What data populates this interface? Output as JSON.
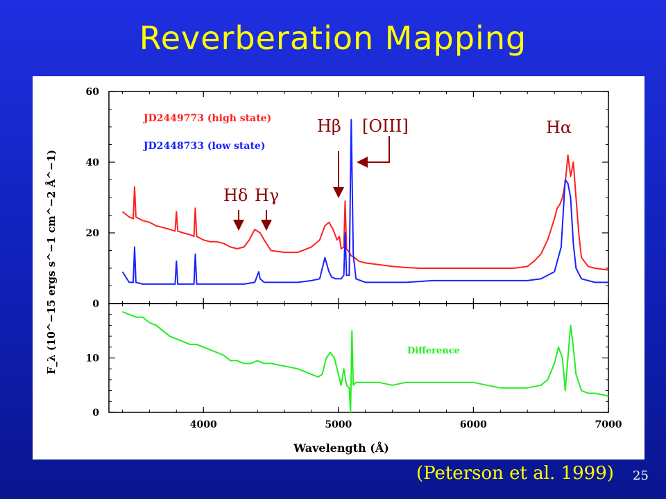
{
  "slide": {
    "title": "Reverberation Mapping",
    "citation": "(Peterson et al. 1999)",
    "page_number": "25"
  },
  "colors": {
    "background": "#1a2ad6",
    "title": "#ffff00",
    "high_state": "#ff2020",
    "low_state": "#1a22ff",
    "difference": "#22ee22",
    "annotation": "#8b0000"
  },
  "chart_data": [
    {
      "type": "line",
      "panel": "top",
      "x_range": [
        3300,
        7000
      ],
      "ylim": [
        0,
        60
      ],
      "yticks": [
        "0",
        "20",
        "40",
        "60"
      ],
      "ylabel": "F_λ (10^−15 ergs s^−1 cm^−2 Å^−1)",
      "legend_position": "top-left",
      "series": [
        {
          "name": "JD2449773 (high state)",
          "color": "#ff2020",
          "x": [
            3400,
            3450,
            3480,
            3490,
            3500,
            3550,
            3600,
            3650,
            3700,
            3750,
            3790,
            3800,
            3810,
            3850,
            3900,
            3930,
            3940,
            3950,
            4000,
            4050,
            4100,
            4150,
            4200,
            4250,
            4300,
            4340,
            4380,
            4420,
            4450,
            4500,
            4600,
            4700,
            4800,
            4861,
            4900,
            4930,
            4960,
            4990,
            5020,
            5040,
            5050,
            5060,
            5080,
            5095,
            5007,
            5120,
            5150,
            5200,
            5300,
            5400,
            5500,
            5600,
            5700,
            5800,
            5900,
            6000,
            6100,
            6200,
            6300,
            6400,
            6450,
            6500,
            6550,
            6600,
            6620,
            6640,
            6660,
            6680,
            6700,
            6720,
            6740,
            6760,
            6780,
            6800,
            6850,
            6900,
            7000
          ],
          "y": [
            26,
            24.5,
            24,
            33,
            24.5,
            23.5,
            23,
            22,
            21.5,
            21,
            20.5,
            26,
            20.5,
            20,
            19.5,
            19,
            27,
            19,
            18,
            17.5,
            17.5,
            17,
            16,
            15.5,
            16,
            18,
            21,
            20,
            18,
            15,
            14.5,
            14.5,
            16,
            18,
            22,
            23,
            21,
            18,
            15.5,
            16,
            29,
            15.5,
            14.5,
            13.5,
            19,
            13,
            12,
            11.5,
            11,
            10.5,
            10.2,
            10,
            10,
            10,
            10,
            10,
            10,
            10,
            10,
            10.5,
            12,
            14,
            18,
            24,
            27,
            28,
            30,
            34,
            42,
            36,
            40,
            30,
            20,
            13,
            10.5,
            10,
            9.5
          ]
        },
        {
          "name": "JD2448733 (low state)",
          "color": "#1a22ff",
          "x": [
            3400,
            3450,
            3480,
            3490,
            3500,
            3550,
            3600,
            3650,
            3700,
            3750,
            3790,
            3800,
            3810,
            3850,
            3900,
            3930,
            3940,
            3950,
            4000,
            4100,
            4200,
            4300,
            4380,
            4410,
            4420,
            4450,
            4500,
            4600,
            4700,
            4800,
            4861,
            4900,
            4930,
            4950,
            4980,
            5020,
            5040,
            5050,
            5060,
            5080,
            5095,
            5110,
            5130,
            5200,
            5300,
            5500,
            5700,
            6000,
            6200,
            6400,
            6500,
            6600,
            6650,
            6680,
            6700,
            6720,
            6740,
            6760,
            6800,
            6900,
            7000
          ],
          "y": [
            9,
            6,
            6,
            16,
            6,
            5.5,
            5.5,
            5.5,
            5.5,
            5.5,
            5.5,
            12,
            5.5,
            5.5,
            5.5,
            5.5,
            14,
            5.5,
            5.5,
            5.5,
            5.5,
            5.5,
            6,
            9,
            7,
            6,
            6,
            6,
            6,
            6.5,
            7,
            13,
            9,
            7.5,
            7,
            7,
            8,
            20,
            8,
            8,
            52,
            14,
            7,
            6,
            6,
            6,
            6.5,
            6.5,
            6.5,
            6.5,
            7,
            9,
            16,
            35,
            34,
            30,
            17,
            10,
            7,
            6,
            6
          ]
        }
      ],
      "annotations": [
        "Hδ",
        "Hγ",
        "Hβ",
        "[OIII]",
        "Hα"
      ]
    },
    {
      "type": "line",
      "panel": "bottom",
      "xlim": [
        3300,
        7000
      ],
      "xticks": [
        "4000",
        "5000",
        "6000",
        "7000"
      ],
      "ylim": [
        0,
        20
      ],
      "yticks": [
        "0",
        "10"
      ],
      "xlabel": "Wavelength (Å)",
      "series": [
        {
          "name": "Difference",
          "color": "#22ee22",
          "x": [
            3400,
            3450,
            3500,
            3550,
            3600,
            3650,
            3700,
            3750,
            3800,
            3850,
            3900,
            3950,
            4000,
            4050,
            4100,
            4150,
            4200,
            4250,
            4300,
            4350,
            4400,
            4450,
            4500,
            4600,
            4700,
            4800,
            4850,
            4880,
            4910,
            4940,
            4970,
            5000,
            5020,
            5040,
            5060,
            5080,
            5090,
            5100,
            5110,
            5130,
            5200,
            5300,
            5400,
            5500,
            5600,
            5700,
            5800,
            5900,
            6000,
            6100,
            6200,
            6300,
            6400,
            6500,
            6550,
            6600,
            6630,
            6660,
            6680,
            6700,
            6720,
            6740,
            6760,
            6800,
            6850,
            6900,
            7000
          ],
          "y": [
            18.5,
            18,
            17.5,
            17.5,
            16.5,
            16,
            15,
            14,
            13.5,
            13,
            12.5,
            12.5,
            12,
            11.5,
            11,
            10.5,
            9.5,
            9.5,
            9,
            9,
            9.5,
            9,
            9,
            8.5,
            8,
            7,
            6.5,
            7,
            10,
            11,
            10,
            7,
            5,
            8,
            5,
            4.5,
            0,
            15,
            5,
            5.5,
            5.5,
            5.5,
            5,
            5.5,
            5.5,
            5.5,
            5.5,
            5.5,
            5.5,
            5,
            4.5,
            4.5,
            4.5,
            5,
            6,
            9,
            12,
            10,
            4,
            10,
            16,
            12,
            7,
            4,
            3.5,
            3.5,
            3
          ]
        }
      ]
    }
  ]
}
